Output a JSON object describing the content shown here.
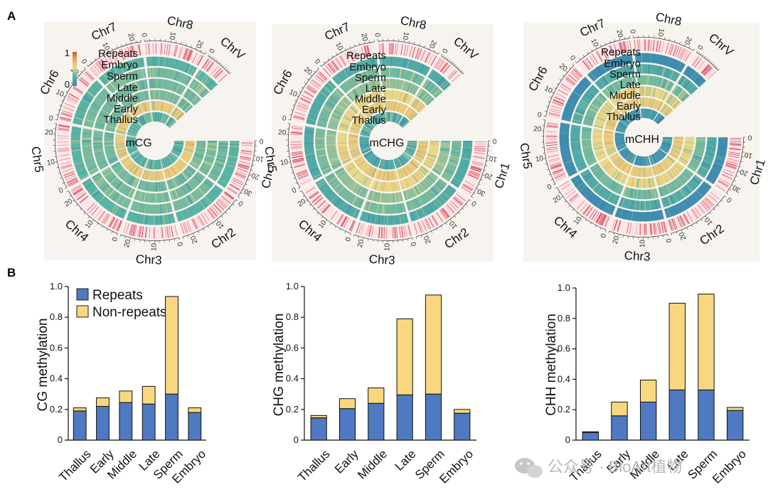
{
  "panels": {
    "a": "A",
    "b": "B"
  },
  "watermark": "公众号 · BioArt植物",
  "colors": {
    "repeats": "#4f79c0",
    "non_repeats": "#f8d77e",
    "repeat_ticks": "#d9334a",
    "methylation_scale": [
      "#3b84b3",
      "#58b3a3",
      "#e9d78a",
      "#e9a257",
      "#d6533b"
    ]
  },
  "chart_data": [
    {
      "type": "circos",
      "center_label": "mCG",
      "track_labels": [
        "Repeats",
        "Embryo",
        "Sperm",
        "Late",
        "Middle",
        "Early",
        "Thallus"
      ],
      "chromosomes": [
        {
          "name": "Chr1",
          "ticks": [
            "0",
            "10",
            "20",
            "30"
          ]
        },
        {
          "name": "Chr2",
          "ticks": [
            "0",
            "10",
            "20"
          ]
        },
        {
          "name": "Chr3",
          "ticks": [
            "0",
            "10",
            "20"
          ]
        },
        {
          "name": "Chr4",
          "ticks": [
            "0",
            "10",
            "20"
          ]
        },
        {
          "name": "Chr5",
          "ticks": [
            "0",
            "10",
            "20"
          ]
        },
        {
          "name": "Chr6",
          "ticks": [
            "0",
            "10",
            "20"
          ]
        },
        {
          "name": "Chr7",
          "ticks": [
            "0",
            "10",
            "20"
          ]
        },
        {
          "name": "Chr8",
          "ticks": [
            "0",
            "10",
            "20"
          ]
        },
        {
          "name": "ChrV",
          "ticks": [
            "0"
          ]
        }
      ],
      "colorbar": {
        "min": "0",
        "max": "1"
      },
      "track_levels": [
        0.25,
        0.55,
        0.3,
        0.3,
        0.3,
        0.25
      ],
      "repeats_level": 0.8
    },
    {
      "type": "circos",
      "center_label": "mCHG",
      "track_labels": [
        "Repeats",
        "Embryo",
        "Sperm",
        "Late",
        "Middle",
        "Early",
        "Thallus"
      ],
      "chromosomes": [
        {
          "name": "Chr1",
          "ticks": [
            "0",
            "10",
            "20",
            "30"
          ]
        },
        {
          "name": "Chr2",
          "ticks": [
            "0",
            "10",
            "20"
          ]
        },
        {
          "name": "Chr3",
          "ticks": [
            "0",
            "10",
            "20"
          ]
        },
        {
          "name": "Chr4",
          "ticks": [
            "0",
            "10",
            "20"
          ]
        },
        {
          "name": "Chr5",
          "ticks": [
            "0",
            "10",
            "20"
          ]
        },
        {
          "name": "Chr6",
          "ticks": [
            "0",
            "10",
            "20"
          ]
        },
        {
          "name": "Chr7",
          "ticks": [
            "0",
            "10",
            "20"
          ]
        },
        {
          "name": "Chr8",
          "ticks": [
            "0",
            "10",
            "20"
          ]
        },
        {
          "name": "ChrV",
          "ticks": [
            "0"
          ]
        }
      ],
      "track_levels": [
        0.2,
        0.55,
        0.5,
        0.35,
        0.3,
        0.2
      ],
      "repeats_level": 0.8
    },
    {
      "type": "circos",
      "center_label": "mCHH",
      "track_labels": [
        "Repeats",
        "Embryo",
        "Sperm",
        "Late",
        "Middle",
        "Early",
        "Thallus"
      ],
      "chromosomes": [
        {
          "name": "Chr1",
          "ticks": [
            "0",
            "10",
            "20",
            "30"
          ]
        },
        {
          "name": "Chr2",
          "ticks": [
            "0",
            "10",
            "20"
          ]
        },
        {
          "name": "Chr3",
          "ticks": [
            "0",
            "10",
            "20"
          ]
        },
        {
          "name": "Chr4",
          "ticks": [
            "0",
            "10",
            "20"
          ]
        },
        {
          "name": "Chr5",
          "ticks": [
            "0",
            "10",
            "20"
          ]
        },
        {
          "name": "Chr6",
          "ticks": [
            "0",
            "10",
            "20"
          ]
        },
        {
          "name": "Chr7",
          "ticks": [
            "0",
            "10",
            "20"
          ]
        },
        {
          "name": "Chr8",
          "ticks": [
            "0",
            "10",
            "20"
          ]
        },
        {
          "name": "ChrV",
          "ticks": [
            "0"
          ]
        }
      ],
      "track_levels": [
        0.1,
        0.55,
        0.5,
        0.3,
        0.2,
        0.05
      ],
      "repeats_level": 0.8
    },
    {
      "type": "bar",
      "stacked": true,
      "categories": [
        "Thallus",
        "Early",
        "Middle",
        "Late",
        "Sperm",
        "Embryo"
      ],
      "series": [
        {
          "name": "Repeats",
          "values": [
            0.19,
            0.22,
            0.245,
            0.235,
            0.3,
            0.18
          ]
        },
        {
          "name": "Non-repeats",
          "values": [
            0.02,
            0.055,
            0.075,
            0.115,
            0.635,
            0.03
          ]
        }
      ],
      "ylabel": "CG methylation",
      "ylim": [
        0,
        1.0
      ],
      "yticks": [
        "0",
        "0.2",
        "0.4",
        "0.6",
        "0.8",
        "1.0"
      ],
      "legend": [
        "Repeats",
        "Non-repeats"
      ]
    },
    {
      "type": "bar",
      "stacked": true,
      "categories": [
        "Thallus",
        "Early",
        "Middle",
        "Late",
        "Sperm",
        "Embryo"
      ],
      "series": [
        {
          "name": "Repeats",
          "values": [
            0.145,
            0.205,
            0.24,
            0.295,
            0.3,
            0.175
          ]
        },
        {
          "name": "Non-repeats",
          "values": [
            0.015,
            0.065,
            0.1,
            0.495,
            0.645,
            0.025
          ]
        }
      ],
      "ylabel": "CHG methylation",
      "ylim": [
        0,
        1.0
      ],
      "yticks": [
        "0",
        "0.2",
        "0.4",
        "0.6",
        "0.8",
        "1.0"
      ]
    },
    {
      "type": "bar",
      "stacked": true,
      "categories": [
        "Thallus",
        "Early",
        "Middle",
        "Late",
        "Sperm",
        "Embryo"
      ],
      "series": [
        {
          "name": "Repeats",
          "values": [
            0.05,
            0.16,
            0.25,
            0.33,
            0.33,
            0.195
          ]
        },
        {
          "name": "Non-repeats",
          "values": [
            0.005,
            0.09,
            0.145,
            0.57,
            0.63,
            0.02
          ]
        }
      ],
      "ylabel": "CHH methylation",
      "ylim": [
        0,
        1.0
      ],
      "yticks": [
        "0",
        "0.2",
        "0.4",
        "0.6",
        "0.8",
        "1.0"
      ]
    }
  ]
}
